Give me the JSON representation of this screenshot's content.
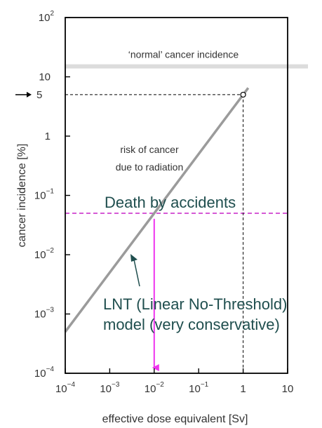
{
  "chart_data": {
    "type": "line",
    "xlabel": "effective dose equivalent [Sv]",
    "ylabel": "cancer incidence [%]",
    "xscale": "log",
    "yscale": "log",
    "xlim": [
      0.0001,
      10
    ],
    "ylim": [
      0.0001,
      100
    ],
    "x_ticks": [
      {
        "value": 0.0001,
        "base": "10",
        "exp": "−4"
      },
      {
        "value": 0.001,
        "base": "10",
        "exp": "−3"
      },
      {
        "value": 0.01,
        "base": "10",
        "exp": "−2"
      },
      {
        "value": 0.1,
        "base": "10",
        "exp": "−1"
      },
      {
        "value": 1,
        "base": "1",
        "exp": ""
      },
      {
        "value": 10,
        "base": "10",
        "exp": ""
      }
    ],
    "y_ticks": [
      {
        "value": 0.0001,
        "base": "10",
        "exp": "−4"
      },
      {
        "value": 0.001,
        "base": "10",
        "exp": "−3"
      },
      {
        "value": 0.01,
        "base": "10",
        "exp": "−2"
      },
      {
        "value": 0.1,
        "base": "10",
        "exp": "−1"
      },
      {
        "value": 1,
        "base": "1",
        "exp": ""
      },
      {
        "value": 10,
        "base": "10",
        "exp": ""
      },
      {
        "value": 100,
        "base": "10",
        "exp": "2"
      }
    ],
    "y_marker": {
      "value": 5,
      "label": "5"
    },
    "series": [
      {
        "x": [
          0.0001,
          1.3
        ],
        "y": [
          0.0005,
          6.5
        ],
        "color": "#9b9b9b"
      }
    ],
    "reference_point": {
      "x": 1,
      "y": 5
    },
    "normal_incidence": {
      "y": 15,
      "label": "‘normal’ cancer incidence",
      "color": "#dcdcdc"
    },
    "accidents": {
      "y": 0.05,
      "label": "Death by accidents",
      "color": "#cc33cc"
    },
    "accident_dose_arrow": {
      "x": 0.01,
      "y_from": 0.04,
      "y_to": 0.0001,
      "color": "#ee33ee"
    },
    "risk_label": [
      "risk of cancer",
      "due to radiation"
    ],
    "lnt_label": [
      "LNT (Linear No-Threshold)",
      "model (very conservative)"
    ],
    "grid": false
  }
}
